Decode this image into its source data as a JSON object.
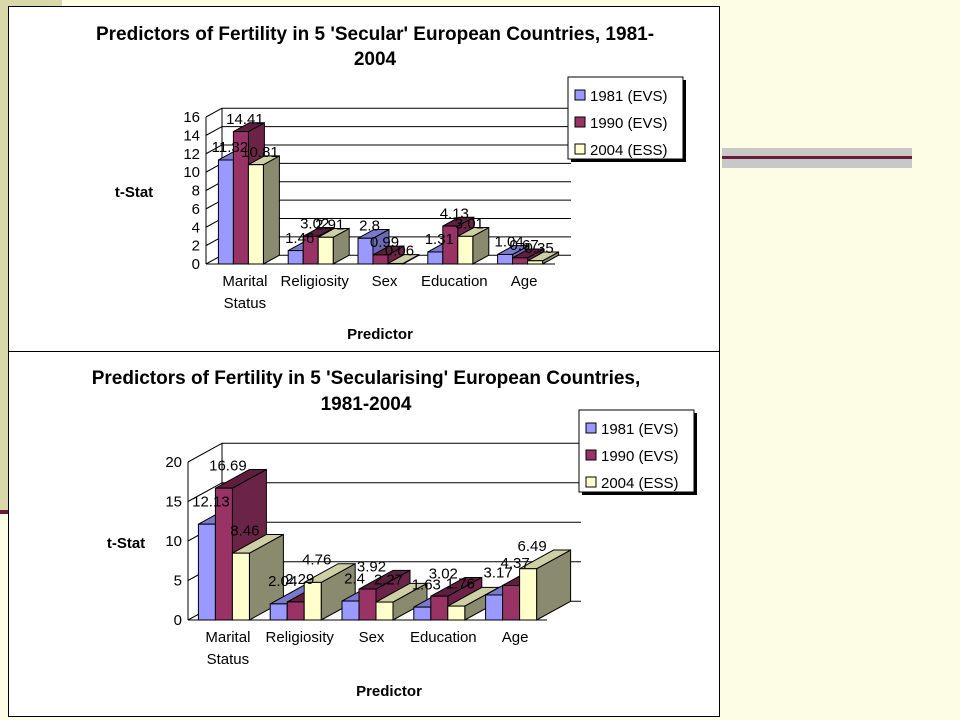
{
  "chart_data": [
    {
      "type": "bar",
      "title": "Predictors of Fertility in 5 'Secular' European Countries, 1981-",
      "title_line2": "2004",
      "xlabel": "Predictor",
      "ylabel": "t-Stat",
      "ylim": [
        0,
        16
      ],
      "yticks": [
        0,
        2,
        4,
        6,
        8,
        10,
        12,
        14,
        16
      ],
      "categories": [
        "Marital Status",
        "Religiosity",
        "Sex",
        "Education",
        "Age"
      ],
      "category_lines": [
        [
          "Marital",
          "Status"
        ],
        [
          "Religiosity"
        ],
        [
          "Sex"
        ],
        [
          "Education"
        ],
        [
          "Age"
        ]
      ],
      "series": [
        {
          "name": "1981 (EVS)",
          "values": [
            11.32,
            1.46,
            2.8,
            1.31,
            1.04
          ]
        },
        {
          "name": "1990 (EVS)",
          "values": [
            14.41,
            3.02,
            0.99,
            4.13,
            0.67
          ]
        },
        {
          "name": "2004 (ESS)",
          "values": [
            10.81,
            2.91,
            0.06,
            3.01,
            0.35
          ]
        }
      ],
      "data_labels": [
        [
          "11.32",
          "1.46",
          "2.8",
          "1.31",
          "1.04"
        ],
        [
          "14.41",
          "3.02",
          "0.99",
          "4.13",
          "0.67"
        ],
        [
          "10.81",
          "2.91",
          "0.06",
          "3.01",
          "0.35"
        ]
      ],
      "grid": true,
      "legend_position": "top-right",
      "colors": {
        "series": [
          "#9999ff",
          "#993366",
          "#ffffcc"
        ],
        "side": [
          "#6b6bb3",
          "#6b2447",
          "#8a8a6e"
        ],
        "top": [
          "#7a7acc",
          "#5e1f3f",
          "#cfcfa5"
        ]
      }
    },
    {
      "type": "bar",
      "title": "Predictors of Fertility in 5 'Secularising' European Countries,",
      "title_line2": "1981-2004",
      "xlabel": "Predictor",
      "ylabel": "t-Stat",
      "ylim": [
        0,
        20
      ],
      "yticks": [
        0,
        5,
        10,
        15,
        20
      ],
      "categories": [
        "Marital Status",
        "Religiosity",
        "Sex",
        "Education",
        "Age"
      ],
      "category_lines": [
        [
          "Marital",
          "Status"
        ],
        [
          "Religiosity"
        ],
        [
          "Sex"
        ],
        [
          "Education"
        ],
        [
          "Age"
        ]
      ],
      "series": [
        {
          "name": "1981 (EVS)",
          "values": [
            12.13,
            2.04,
            2.4,
            1.63,
            3.17
          ]
        },
        {
          "name": "1990 (EVS)",
          "values": [
            16.69,
            2.29,
            3.92,
            3.02,
            4.37
          ]
        },
        {
          "name": "2004 (ESS)",
          "values": [
            8.46,
            4.76,
            2.27,
            1.76,
            6.49
          ]
        }
      ],
      "data_labels": [
        [
          "12.13",
          "2.04",
          "2.4",
          "1.63",
          "3.17"
        ],
        [
          "16.69",
          "2.29",
          "3.92",
          "3.02",
          "4.37"
        ],
        [
          "8.46",
          "4.76",
          "2.27",
          "1.76",
          "6.49"
        ]
      ],
      "grid": true,
      "legend_position": "top-right",
      "colors": {
        "series": [
          "#9999ff",
          "#993366",
          "#ffffcc"
        ],
        "side": [
          "#6b6bb3",
          "#6b2447",
          "#8a8a6e"
        ],
        "top": [
          "#7a7acc",
          "#5e1f3f",
          "#cfcfa5"
        ]
      }
    }
  ]
}
